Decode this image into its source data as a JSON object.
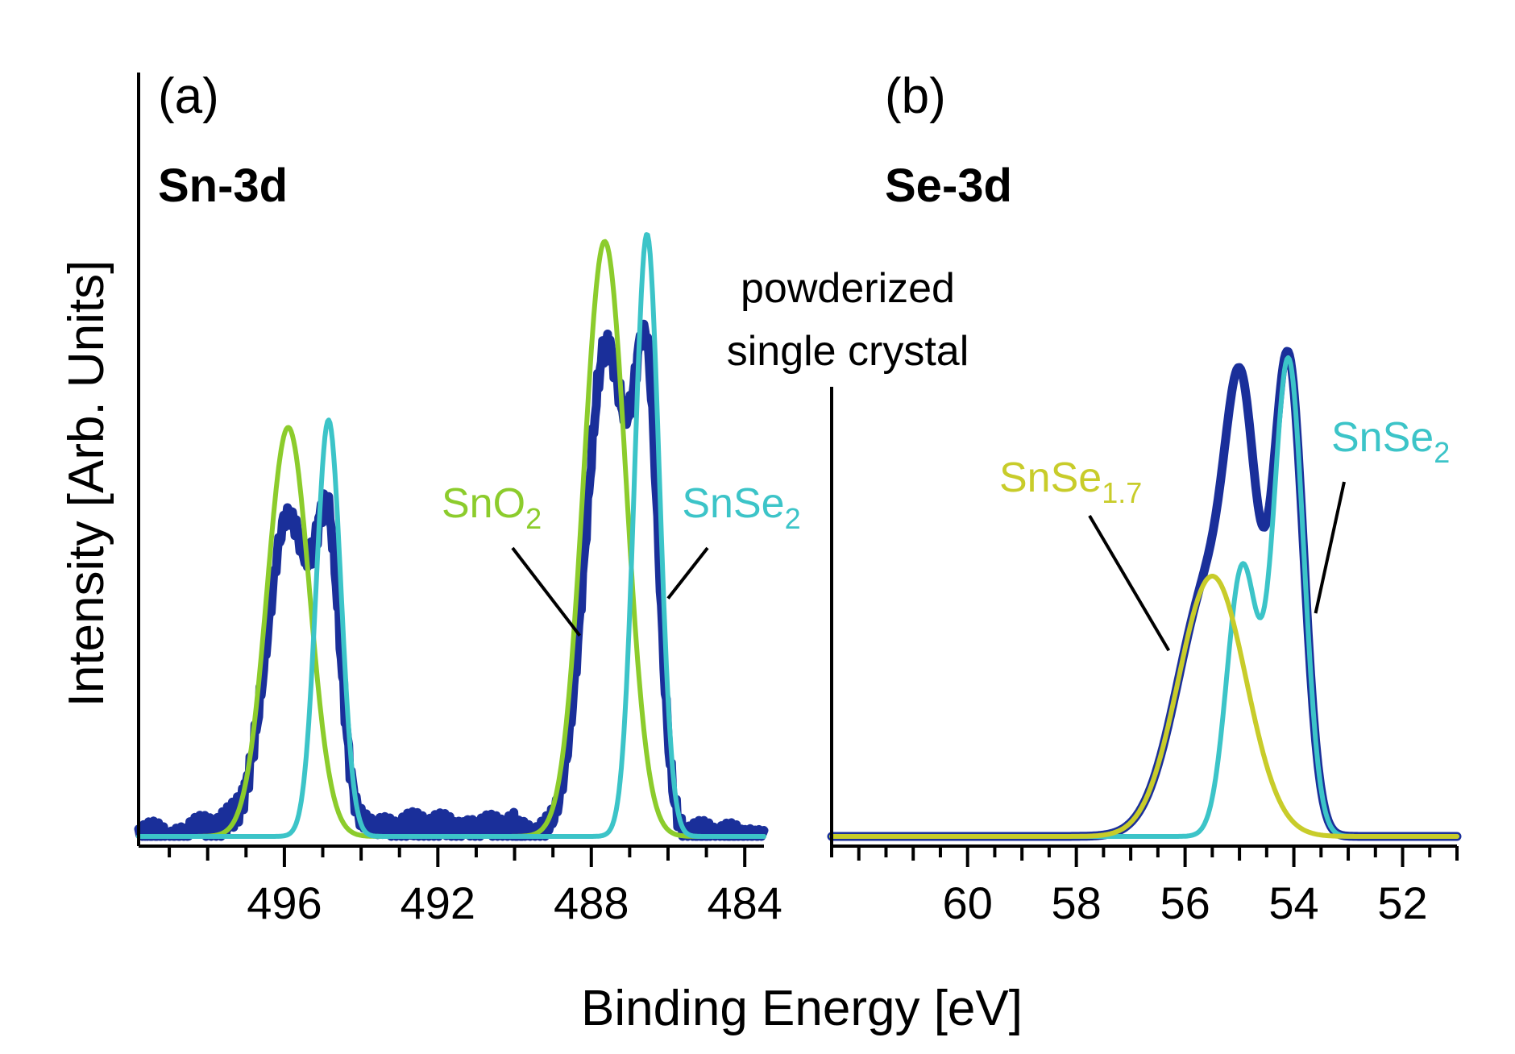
{
  "colors": {
    "measured": "#1a2f9a",
    "sno2": "#8ccc2c",
    "snse2": "#3cc4c8",
    "snse17": "#c8cc2a",
    "axis": "#000000"
  },
  "figure": {
    "ylabel": "Intensity [Arb. Units]",
    "xlabel": "Binding Energy [eV]",
    "sample_label_line1": "powderized",
    "sample_label_line2": "single crystal"
  },
  "chart_data": [
    {
      "type": "line",
      "panel_label": "(a)",
      "title": "Sn-3d",
      "xlabel": "Binding Energy [eV]",
      "ylabel": "Intensity [Arb. Units]",
      "xlim": [
        499.8,
        483.5
      ],
      "ylim": [
        0,
        1.0
      ],
      "xticks": [
        496,
        492,
        488,
        484
      ],
      "x_reversed": true,
      "grid": false,
      "series": [
        {
          "name": "measured",
          "role": "measured",
          "color": "#1a2f9a",
          "peaks": [
            [
              495.9,
              0.42,
              0.55
            ],
            [
              494.85,
              0.36,
              0.32
            ],
            [
              487.6,
              0.66,
              0.55
            ],
            [
              486.55,
              0.56,
              0.32
            ]
          ]
        },
        {
          "name": "SnO2",
          "role": "component",
          "color": "#8ccc2c",
          "peaks": [
            [
              495.9,
              0.55,
              0.55
            ],
            [
              487.65,
              0.8,
              0.55
            ]
          ]
        },
        {
          "name": "SnSe2",
          "role": "component",
          "color": "#3cc4c8",
          "peaks": [
            [
              494.85,
              0.56,
              0.32
            ],
            [
              486.55,
              0.81,
              0.32
            ]
          ]
        }
      ],
      "annotations": [
        {
          "series": "SnO2",
          "text": "SnO",
          "subscript": "2",
          "x": 488.3,
          "y": 0.27
        },
        {
          "series": "SnSe2",
          "text": "SnSe",
          "subscript": "2",
          "x": 486.0,
          "y": 0.32
        }
      ]
    },
    {
      "type": "line",
      "panel_label": "(b)",
      "title": "Se-3d",
      "xlabel": "Binding Energy [eV]",
      "ylabel": "Intensity [Arb. Units]",
      "xlim": [
        62.5,
        51.0
      ],
      "ylim": [
        0,
        1.0
      ],
      "xticks": [
        60,
        58,
        56,
        54,
        52
      ],
      "x_reversed": true,
      "grid": false,
      "series": [
        {
          "name": "measured",
          "role": "measured",
          "color": "#1a2f9a",
          "peaks": [
            [
              55.5,
              0.35,
              0.62
            ],
            [
              54.95,
              0.38,
              0.28
            ],
            [
              54.1,
              0.62,
              0.28
            ]
          ]
        },
        {
          "name": "SnSe2",
          "role": "component",
          "color": "#3cc4c8",
          "peaks": [
            [
              54.95,
              0.36,
              0.28
            ],
            [
              54.1,
              0.64,
              0.28
            ]
          ]
        },
        {
          "name": "SnSe1.7",
          "role": "component",
          "color": "#c8cc2a",
          "peaks": [
            [
              55.5,
              0.35,
              0.62
            ]
          ]
        }
      ],
      "annotations": [
        {
          "series": "SnSe1.7",
          "text": "SnSe",
          "subscript": "1.7",
          "x": 56.3,
          "y": 0.25
        },
        {
          "series": "SnSe2",
          "text": "SnSe",
          "subscript": "2",
          "x": 53.6,
          "y": 0.3
        }
      ]
    }
  ]
}
